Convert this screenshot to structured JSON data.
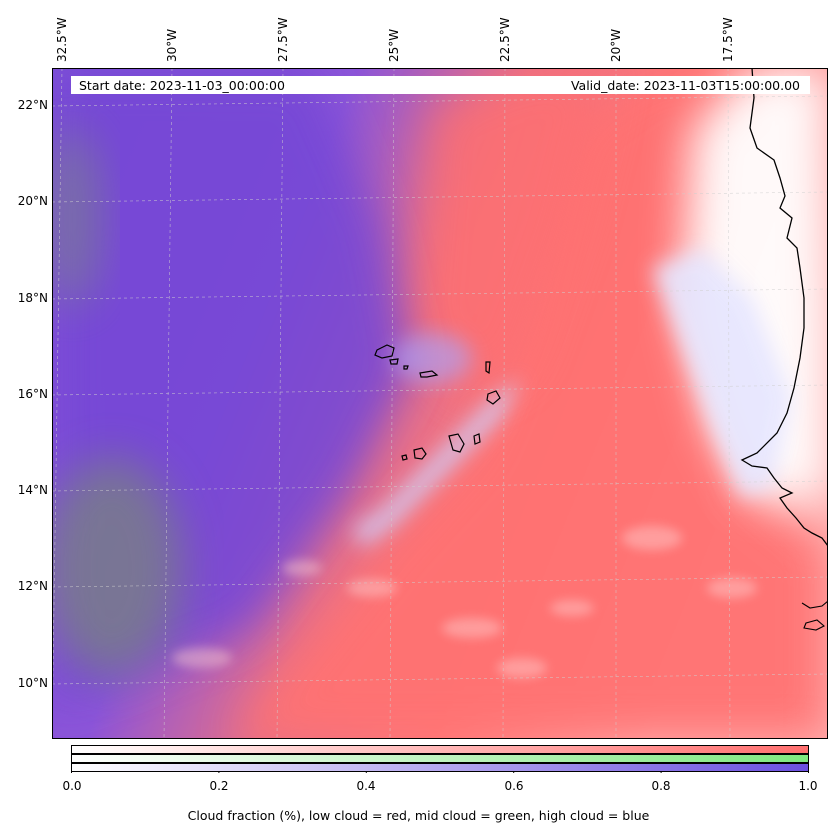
{
  "header": {
    "start_date": "Start date: 2023-11-03_00:00:00",
    "valid_date": "Valid_date: 2023-11-03T15:00:00.00"
  },
  "map": {
    "longitude_labels": [
      "32.5°W",
      "30°W",
      "27.5°W",
      "25°W",
      "22.5°W",
      "20°W",
      "17.5°W"
    ],
    "latitude_labels": [
      "22°N",
      "20°N",
      "18°N",
      "16°N",
      "14°N",
      "12°N",
      "10°N"
    ],
    "colors": {
      "low_cloud": "#ff6f6f",
      "mid_cloud": "#7fe87f",
      "high_cloud": "#6b50e0",
      "coastline": "#000000",
      "gridline": "#bbbbbb"
    }
  },
  "colorbar": {
    "ticks": [
      "0.0",
      "0.2",
      "0.4",
      "0.6",
      "0.8",
      "1.0"
    ],
    "label": "Cloud fraction (%), low cloud = red, mid cloud = green, high cloud = blue",
    "bands": [
      "low cloud",
      "mid cloud",
      "high cloud"
    ]
  }
}
